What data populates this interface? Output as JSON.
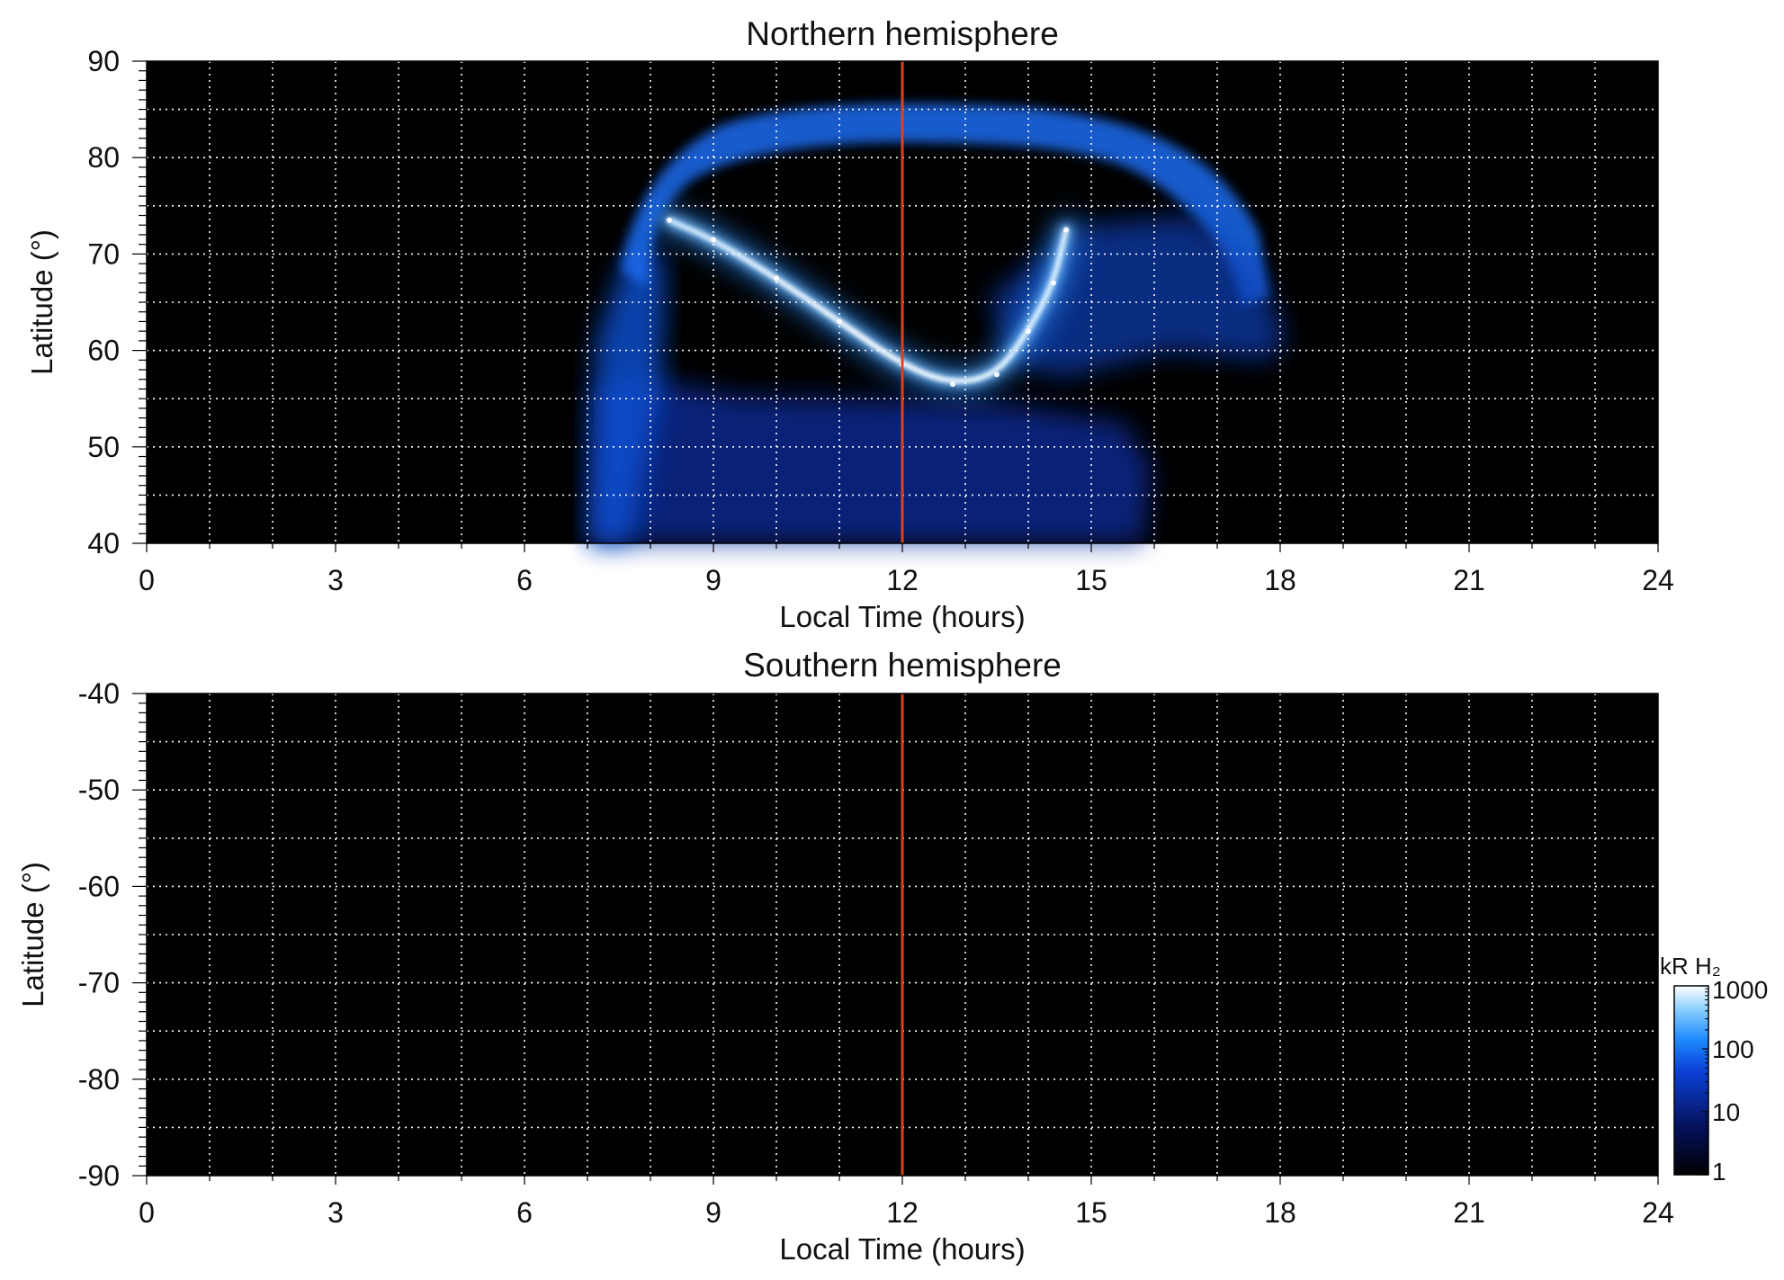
{
  "chart_data": [
    {
      "type": "heatmap",
      "title": "Northern hemisphere",
      "xlabel": "Local Time (hours)",
      "ylabel": "Latitude (°)",
      "xlim": [
        0,
        24
      ],
      "ylim": [
        40,
        90
      ],
      "xticks": [
        "0",
        "3",
        "6",
        "9",
        "12",
        "15",
        "18",
        "21",
        "24"
      ],
      "yticks": [
        "40",
        "50",
        "60",
        "70",
        "80",
        "90"
      ],
      "grid": true,
      "reference_line": {
        "x": 12,
        "color": "#e0401c"
      },
      "background": "#000000",
      "emission": {
        "coverage_lt": [
          7.0,
          18.2
        ],
        "main_oval": [
          {
            "lt": 8.3,
            "lat": 73.5
          },
          {
            "lt": 9.0,
            "lat": 71.5
          },
          {
            "lt": 10.0,
            "lat": 67.5
          },
          {
            "lt": 11.0,
            "lat": 63.0
          },
          {
            "lt": 12.0,
            "lat": 58.5
          },
          {
            "lt": 12.8,
            "lat": 56.5
          },
          {
            "lt": 13.5,
            "lat": 57.5
          },
          {
            "lt": 14.0,
            "lat": 62.0
          },
          {
            "lt": 14.4,
            "lat": 67.0
          },
          {
            "lt": 14.6,
            "lat": 72.5
          }
        ],
        "peak_kR": 1000
      }
    },
    {
      "type": "heatmap",
      "title": "Southern hemisphere",
      "xlabel": "Local Time (hours)",
      "ylabel": "Latitude (°)",
      "xlim": [
        0,
        24
      ],
      "ylim": [
        -90,
        -40
      ],
      "xticks": [
        "0",
        "3",
        "6",
        "9",
        "12",
        "15",
        "18",
        "21",
        "24"
      ],
      "yticks": [
        "-40",
        "-50",
        "-60",
        "-70",
        "-80",
        "-90"
      ],
      "grid": true,
      "reference_line": {
        "x": 12,
        "color": "#e0401c"
      },
      "background": "#000000"
    }
  ],
  "colorbar": {
    "label": "kR H₂",
    "scale": "log",
    "range": [
      1,
      1000
    ],
    "ticks": [
      "1000",
      "100",
      "10",
      "1"
    ],
    "colors": [
      "#000000",
      "#06115a",
      "#0a40d8",
      "#1f8cff",
      "#8fd0ff",
      "#ffffff"
    ]
  }
}
